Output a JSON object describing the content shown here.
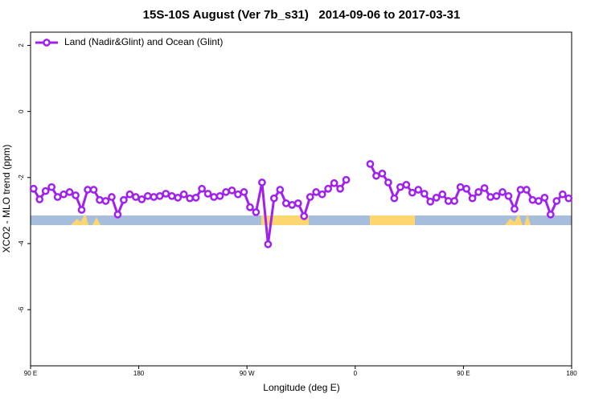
{
  "chart_data": {
    "type": "line",
    "title": "15S-10S August (Ver 7b_s31)   2014-09-06 to 2017-03-31",
    "xlabel": "Longitude (deg E)",
    "ylabel": "XCO2 - MLO trend (ppm)",
    "x": [
      92.5,
      97.5,
      102.5,
      107.5,
      112.5,
      117.5,
      122.5,
      127.5,
      132.5,
      137.5,
      142.5,
      147.5,
      152.5,
      157.5,
      162.5,
      167.5,
      172.5,
      177.5,
      182.5,
      187.5,
      192.5,
      197.5,
      202.5,
      207.5,
      212.5,
      217.5,
      222.5,
      227.5,
      232.5,
      237.5,
      242.5,
      247.5,
      252.5,
      257.5,
      262.5,
      267.5,
      272.5,
      277.5,
      282.5,
      287.5,
      292.5,
      297.5,
      302.5,
      307.5,
      312.5,
      317.5,
      322.5,
      327.5,
      332.5,
      337.5,
      342.5,
      347.5,
      352.5,
      357.5,
      362.5,
      367.5,
      372.5,
      377.5,
      382.5,
      387.5,
      392.5,
      397.5,
      402.5,
      407.5,
      412.5,
      417.5,
      422.5,
      427.5,
      432.5,
      437.5,
      442.5,
      447.5,
      452.5,
      457.5,
      462.5,
      467.5,
      472.5,
      477.5,
      482.5,
      487.5,
      492.5,
      497.5,
      502.5,
      507.5,
      512.5,
      517.5,
      522.5,
      527.5,
      532.5,
      537.5
    ],
    "series": [
      {
        "name": "Land (Nadir&Glint) and Ocean (Glint)",
        "color": "#a020f0",
        "values": [
          -2.34,
          -2.66,
          -2.41,
          -2.29,
          -2.59,
          -2.51,
          -2.44,
          -2.54,
          -2.98,
          -2.37,
          -2.37,
          -2.68,
          -2.71,
          -2.59,
          -3.12,
          -2.68,
          -2.51,
          -2.59,
          -2.66,
          -2.56,
          -2.59,
          -2.56,
          -2.49,
          -2.56,
          -2.61,
          -2.51,
          -2.63,
          -2.61,
          -2.34,
          -2.49,
          -2.59,
          -2.56,
          -2.44,
          -2.39,
          -2.51,
          -2.44,
          -2.9,
          -3.05,
          -2.15,
          -4.02,
          -2.63,
          -2.37,
          -2.78,
          -2.83,
          -2.78,
          -3.17,
          -2.59,
          -2.44,
          -2.51,
          -2.34,
          -2.17,
          -2.34,
          -2.07,
          null,
          null,
          null,
          -1.59,
          -1.95,
          -1.88,
          -2.15,
          -2.63,
          -2.29,
          -2.22,
          -2.46,
          -2.37,
          -2.49,
          -2.73,
          -2.61,
          -2.51,
          -2.71,
          -2.71,
          -2.29,
          -2.34,
          -2.63,
          -2.44,
          -2.32,
          -2.59,
          -2.56,
          -2.44,
          -2.56,
          -2.95,
          -2.37,
          -2.37,
          -2.68,
          -2.71,
          -2.61,
          -3.12,
          -2.71,
          -2.51,
          -2.63
        ]
      }
    ],
    "xlim": [
      90,
      540
    ],
    "ylim": [
      -7.7,
      2.4
    ],
    "xticks": [
      {
        "value": 90,
        "label": "90 E"
      },
      {
        "value": 180,
        "label": "180"
      },
      {
        "value": 270,
        "label": "90 W"
      },
      {
        "value": 360,
        "label": "0"
      },
      {
        "value": 450,
        "label": "90 E"
      },
      {
        "value": 540,
        "label": "180"
      }
    ],
    "yticks": [
      2,
      0,
      -2,
      -4,
      -6
    ],
    "legend": "upper left"
  }
}
